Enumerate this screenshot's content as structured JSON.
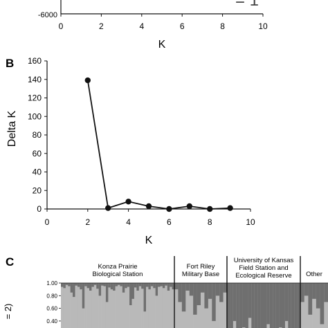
{
  "colors": {
    "ink": "#111111",
    "dark_cluster": "#6f6f6f",
    "light_cluster": "#b9b9b9"
  },
  "chart_data": [
    {
      "panel": "A (partial)",
      "type": "line",
      "xlabel": "K",
      "xlim": [
        0,
        10
      ],
      "x_ticks": [
        "0",
        "2",
        "4",
        "6",
        "8",
        "10"
      ],
      "y_visible_tick": "-6000",
      "annotation_fragment": "= 1"
    },
    {
      "panel": "B",
      "panel_label": "B",
      "type": "line",
      "xlabel": "K",
      "ylabel": "Delta K",
      "xlim": [
        0,
        10
      ],
      "ylim": [
        0,
        160
      ],
      "x_ticks": [
        "0",
        "2",
        "4",
        "6",
        "8",
        "10"
      ],
      "y_ticks": [
        "0",
        "20",
        "40",
        "60",
        "80",
        "100",
        "120",
        "140",
        "160"
      ],
      "x": [
        2,
        3,
        4,
        5,
        6,
        7,
        8,
        9
      ],
      "y": [
        139,
        1,
        8,
        3,
        0,
        3,
        0,
        1
      ],
      "grid": false
    },
    {
      "panel": "C",
      "panel_label": "C",
      "type": "bar",
      "stacked": true,
      "ylabel_fragment": "= 2)",
      "y_ticks": [
        "1.00",
        "0.80",
        "0.60",
        "0.40"
      ],
      "groups": [
        {
          "label": "Konza Prairie Biological Station",
          "lines": [
            "Konza Prairie",
            "Biological Station"
          ]
        },
        {
          "label": "Fort Riley Military Base",
          "lines": [
            "Fort Riley",
            "Military Base"
          ]
        },
        {
          "label": "University of Kansas Field Station and Ecological Reserve",
          "lines": [
            "University of Kansas",
            "Field Station and",
            "Ecological Reserve"
          ]
        },
        {
          "label": "Other",
          "lines": [
            "Other"
          ]
        }
      ],
      "group_values": [
        [
          0.06,
          0.08,
          0.03,
          0.05,
          0.15,
          0.22,
          0.04,
          0.06,
          0.1,
          0.4,
          0.05,
          0.08,
          0.12,
          0.06,
          0.03,
          0.09,
          0.2,
          0.04,
          0.05,
          0.3,
          0.07,
          0.1,
          0.12,
          0.05,
          0.03,
          0.05,
          0.15,
          0.08,
          0.06,
          0.35,
          0.25,
          0.07,
          0.12,
          0.05,
          0.09,
          0.45,
          0.06,
          0.1,
          0.05,
          0.08,
          0.2,
          0.06,
          0.05,
          0.08,
          0.04,
          0.12,
          0.06,
          0.1
        ],
        [
          0.1,
          0.3,
          0.45,
          0.12,
          0.2,
          0.5,
          0.35,
          0.15,
          0.4,
          0.25,
          0.6,
          0.2,
          0.3,
          0.15
        ],
        [
          0.95,
          0.9,
          0.6,
          0.85,
          0.92,
          0.7,
          0.9,
          0.55,
          0.88,
          0.95,
          0.75,
          0.8,
          0.92,
          0.65,
          0.9,
          0.85,
          0.95,
          0.7,
          0.9,
          0.6,
          0.88,
          0.93,
          0.8,
          0.9
        ],
        [
          0.3,
          0.2,
          0.5,
          0.25,
          0.4,
          0.65,
          0.3
        ]
      ]
    }
  ]
}
